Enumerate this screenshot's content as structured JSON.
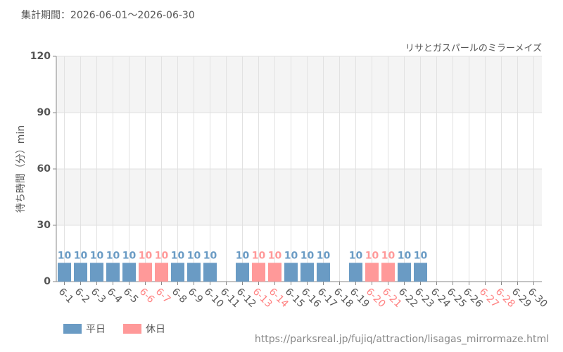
{
  "chart_data": {
    "type": "bar",
    "subtitle": "集計期間：2026-06-01～2026-06-30",
    "title": "リサとガスパールのミラーメイズ",
    "y_label": "待ち時間（分）min",
    "source": "https://parksreal.jp/fujiq/attraction/lisagas_mirrormaze.html",
    "categories": [
      "6-1",
      "6-2",
      "6-3",
      "6-4",
      "6-5",
      "6-6",
      "6-7",
      "6-8",
      "6-9",
      "6-10",
      "6-11",
      "6-12",
      "6-13",
      "6-14",
      "6-15",
      "6-16",
      "6-17",
      "6-18",
      "6-19",
      "6-20",
      "6-21",
      "6-22",
      "6-23",
      "6-24",
      "6-25",
      "6-26",
      "6-27",
      "6-28",
      "6-29",
      "6-30"
    ],
    "category_label_colors": [
      "#555",
      "#555",
      "#555",
      "#555",
      "#555",
      "#ff8080",
      "#ff8080",
      "#555",
      "#555",
      "#555",
      "#555",
      "#555",
      "#ff8080",
      "#ff8080",
      "#555",
      "#555",
      "#555",
      "#555",
      "#555",
      "#ff8080",
      "#ff8080",
      "#555",
      "#555",
      "#555",
      "#555",
      "#555",
      "#ff8080",
      "#ff8080",
      "#555",
      "#555"
    ],
    "series": [
      {
        "name": "平日",
        "color": "#6a9bc4",
        "values": [
          10,
          10,
          10,
          10,
          10,
          null,
          null,
          10,
          10,
          10,
          null,
          10,
          null,
          null,
          10,
          10,
          10,
          null,
          10,
          null,
          null,
          10,
          10,
          null,
          null,
          null,
          null,
          null,
          null,
          null
        ]
      },
      {
        "name": "休日",
        "color": "#ff9999",
        "values": [
          null,
          null,
          null,
          null,
          null,
          10,
          10,
          null,
          null,
          null,
          null,
          null,
          10,
          10,
          null,
          null,
          null,
          null,
          null,
          10,
          10,
          null,
          null,
          null,
          null,
          null,
          null,
          null,
          null,
          null
        ]
      }
    ],
    "ylim": [
      0,
      120
    ],
    "yticks": [
      0,
      30,
      60,
      90,
      120
    ],
    "grid": true
  }
}
